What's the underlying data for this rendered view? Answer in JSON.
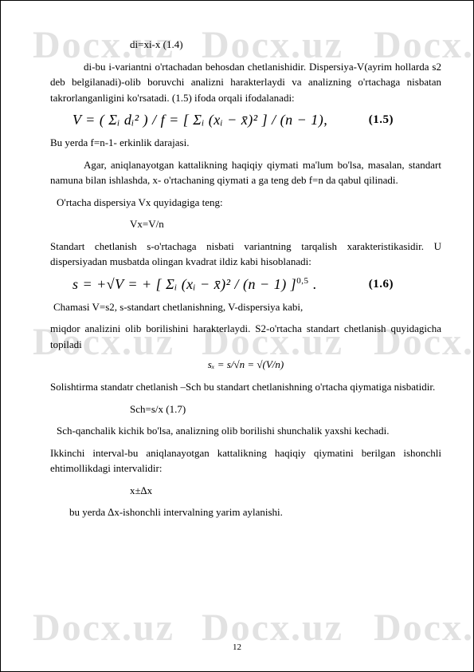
{
  "watermark": "Docx.uz",
  "page_number": "12",
  "colors": {
    "text": "#000000",
    "watermark": "rgba(160,160,160,0.3)",
    "background": "#ffffff"
  },
  "p1_line": "di=xi-x                                                            (1.4)",
  "p2": "di-bu i-variantni o'rtachadan behosdan chetlanishidir. Dispersiya-V(ayrim hollarda s2 deb belgilanadi)-olib boruvchi analizni harakterlaydi va analizning o'rtachaga nisbatan takrorlanganligini  ko'rsatadi. (1.5) ifoda orqali ifodalanadi:",
  "formula15": "V = ( Σᵢ dᵢ² ) / f = [ Σᵢ (xᵢ − x̄)² ] / (n − 1),",
  "formula15_num": "(1.5)",
  "p3": "Bu yerda f=n-1- erkinlik darajasi.",
  "p4": "Agar, aniqlanayotgan kattalikning haqiqiy qiymati ma'lum bo'lsa, masalan, standart namuna bilan ishlashda, x- o'rtachaning qiymati a ga  teng deb f=n da qabul qilinadi.",
  "p5": "O'rtacha dispersiya Vx quyidagiga teng:",
  "p6": "Vx=V/n",
  "p7": "Standart chetlanish s-o'rtachaga nisbati variantning tarqalish xarakteristikasidir. U dispersiyadan musbatda olingan kvadrat ildiz kabi hisoblanadi:",
  "formula16": "s = +√V = + [ Σᵢ (xᵢ − x̄)² / (n − 1) ]",
  "formula16_exp": "0,5",
  "formula16_num": "(1.6)",
  "p8": "Chamasi V=s2,  s-standart chetlanishning, V-dispersiya kabi,",
  "p9": "miqdor analizini olib borilishini harakterlaydi. S2-o'rtacha standart chetlanish quyidagicha topiladi",
  "p10": "sₓ = s/√n = √(V/n)",
  "p11": "Solishtirma standatr chetlanish –Sch bu standart chetlanishning o'rtacha qiymatiga nisbatidir.",
  "p12": "Sch=s/x                                                          (1.7)",
  "p13": "Sch-qanchalik kichik bo'lsa, analizning olib borilishi shunchalik yaxshi kechadi.",
  "p14": "Ikkinchi interval-bu aniqlanayotgan kattalikning haqiqiy qiymatini berilgan ishonchli ehtimollikdagi intervalidir:",
  "p15": "x±∆x",
  "p16": "bu yerda ∆x-ishonchli intervalning yarim aylanishi."
}
